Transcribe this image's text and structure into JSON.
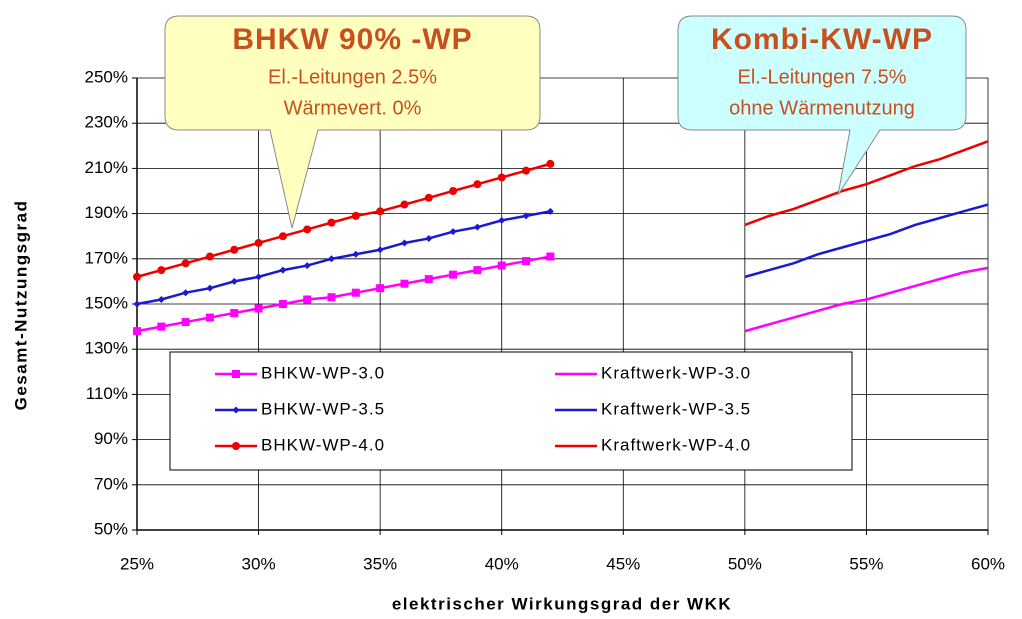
{
  "chart_data": {
    "type": "line",
    "xlabel": "elektrischer Wirkungsgrad der WKK",
    "ylabel": "Gesamt-Nutzungsgrad",
    "xlim": [
      25,
      60
    ],
    "ylim": [
      50,
      250
    ],
    "xticks": [
      {
        "value": 25,
        "label": "25%"
      },
      {
        "value": 30,
        "label": "30%"
      },
      {
        "value": 35,
        "label": "35%"
      },
      {
        "value": 40,
        "label": "40%"
      },
      {
        "value": 45,
        "label": "45%"
      },
      {
        "value": 50,
        "label": "50%"
      },
      {
        "value": 55,
        "label": "55%"
      },
      {
        "value": 60,
        "label": "60%"
      }
    ],
    "yticks": [
      {
        "value": 50,
        "label": "50%"
      },
      {
        "value": 70,
        "label": "70%"
      },
      {
        "value": 90,
        "label": "90%"
      },
      {
        "value": 110,
        "label": "110%"
      },
      {
        "value": 130,
        "label": "130%"
      },
      {
        "value": 150,
        "label": "150%"
      },
      {
        "value": 170,
        "label": "170%"
      },
      {
        "value": 190,
        "label": "190%"
      },
      {
        "value": 210,
        "label": "210%"
      },
      {
        "value": 230,
        "label": "230%"
      },
      {
        "value": 250,
        "label": "250%"
      }
    ],
    "grid": true,
    "series": [
      {
        "name": "BHKW-WP-3.0",
        "color": "#ff00ff",
        "marker": "square",
        "x": [
          25,
          26,
          27,
          28,
          29,
          30,
          31,
          32,
          33,
          34,
          35,
          36,
          37,
          38,
          39,
          40,
          41,
          42
        ],
        "values": [
          138,
          140,
          142,
          144,
          146,
          148,
          150,
          152,
          153,
          155,
          157,
          159,
          161,
          163,
          165,
          167,
          169,
          171
        ]
      },
      {
        "name": "BHKW-WP-3.5",
        "color": "#1a1ad0",
        "marker": "diamond",
        "x": [
          25,
          26,
          27,
          28,
          29,
          30,
          31,
          32,
          33,
          34,
          35,
          36,
          37,
          38,
          39,
          40,
          41,
          42
        ],
        "values": [
          150,
          152,
          155,
          157,
          160,
          162,
          165,
          167,
          170,
          172,
          174,
          177,
          179,
          182,
          184,
          187,
          189,
          191
        ]
      },
      {
        "name": "BHKW-WP-4.0",
        "color": "#ee0000",
        "marker": "circle",
        "x": [
          25,
          26,
          27,
          28,
          29,
          30,
          31,
          32,
          33,
          34,
          35,
          36,
          37,
          38,
          39,
          40,
          41,
          42
        ],
        "values": [
          162,
          165,
          168,
          171,
          174,
          177,
          180,
          183,
          186,
          189,
          191,
          194,
          197,
          200,
          203,
          206,
          209,
          212
        ]
      },
      {
        "name": "Kraftwerk-WP-3.0",
        "color": "#ff00ff",
        "x": [
          50,
          51,
          52,
          53,
          54,
          55,
          56,
          57,
          58,
          59,
          60
        ],
        "values": [
          138,
          141,
          144,
          147,
          150,
          152,
          155,
          158,
          161,
          164,
          166
        ]
      },
      {
        "name": "Kraftwerk-WP-3.5",
        "color": "#1a1ad0",
        "x": [
          50,
          51,
          52,
          53,
          54,
          55,
          56,
          57,
          58,
          59,
          60
        ],
        "values": [
          162,
          165,
          168,
          172,
          175,
          178,
          181,
          185,
          188,
          191,
          194
        ]
      },
      {
        "name": "Kraftwerk-WP-4.0",
        "color": "#ee0000",
        "x": [
          50,
          51,
          52,
          53,
          54,
          55,
          56,
          57,
          58,
          59,
          60
        ],
        "values": [
          185,
          189,
          192,
          196,
          200,
          203,
          207,
          211,
          214,
          218,
          222
        ]
      }
    ],
    "annotations": [
      {
        "title": "BHKW 90% -WP",
        "lines": [
          "El.-Leitungen 2.5%",
          "Wärmevert. 0%"
        ]
      },
      {
        "title": "Kombi-KW-WP",
        "lines": [
          "El.-Leitungen 7.5%",
          "ohne Wärmenutzung"
        ]
      }
    ]
  }
}
